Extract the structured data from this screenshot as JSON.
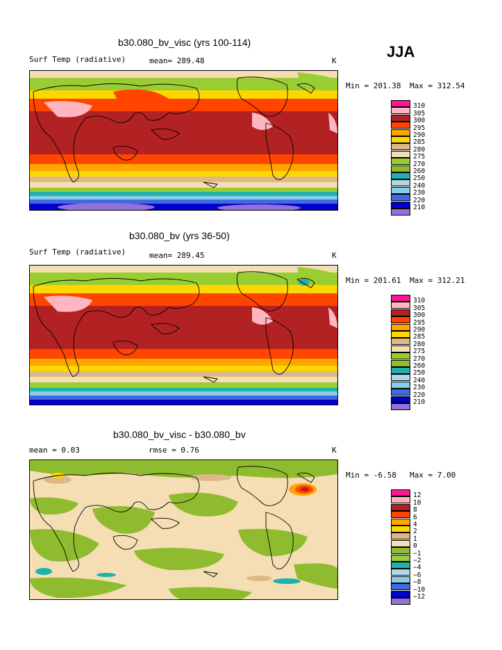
{
  "season_label": "JJA",
  "panels": [
    {
      "title": "b30.080_bv_visc (yrs 100-114)",
      "subtitle_left": "Surf Temp (radiative)",
      "subtitle_mid": "mean= 289.48",
      "units": "K",
      "min_label": "Min = 201.38",
      "max_label": "Max = 312.54",
      "kind": "absolute"
    },
    {
      "title": "b30.080_bv (yrs 36-50)",
      "subtitle_left": "Surf Temp (radiative)",
      "subtitle_mid": "mean= 289.45",
      "units": "K",
      "min_label": "Min = 201.61",
      "max_label": "Max = 312.21",
      "kind": "absolute"
    },
    {
      "title": "b30.080_bv_visc - b30.080_bv",
      "subtitle_left": "mean =    0.03",
      "subtitle_mid": "rmse =    0.76",
      "units": "K",
      "min_label": "Min =  -6.58",
      "max_label": "Max =    7.00",
      "kind": "difference"
    }
  ],
  "colorbars": {
    "absolute": {
      "labels": [
        "310",
        "305",
        "300",
        "295",
        "290",
        "285",
        "280",
        "275",
        "270",
        "260",
        "250",
        "240",
        "230",
        "220",
        "210"
      ],
      "colors": [
        "#ff1493",
        "#ffb6c1",
        "#b22222",
        "#ff4500",
        "#ffa500",
        "#ffd700",
        "#deb887",
        "#f5deb3",
        "#9acd32",
        "#8fbc2f",
        "#20b2aa",
        "#add8e6",
        "#87ceeb",
        "#4169e1",
        "#0000cd",
        "#9370db"
      ]
    },
    "difference": {
      "labels": [
        "12",
        "10",
        "8",
        "6",
        "4",
        "2",
        "1",
        "0",
        "−1",
        "−2",
        "−4",
        "−6",
        "−8",
        "−10",
        "−12"
      ],
      "colors": [
        "#ff1493",
        "#ffb6c1",
        "#b22222",
        "#ff4500",
        "#ffa500",
        "#ffd700",
        "#deb887",
        "#f5deb3",
        "#8fbc2f",
        "#9acd32",
        "#20b2aa",
        "#add8e6",
        "#87ceeb",
        "#4169e1",
        "#0000cd",
        "#9370db"
      ]
    }
  }
}
